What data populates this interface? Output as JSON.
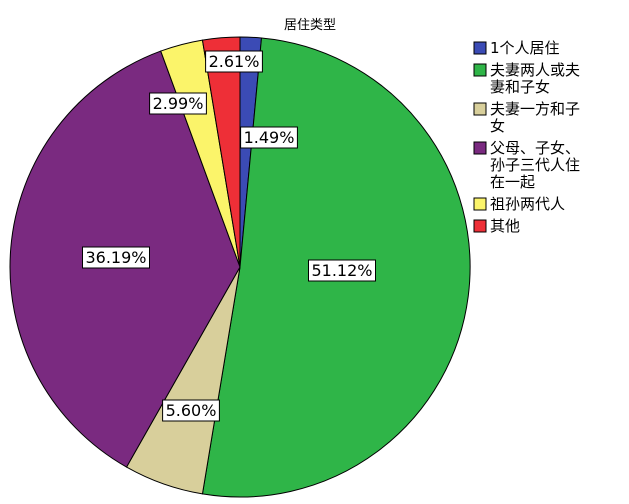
{
  "chart_data": {
    "type": "pie",
    "title": "居住类型",
    "legend_position": "right",
    "slices": [
      {
        "label": "1个人居住",
        "legend_lines": [
          "1个人居住"
        ],
        "value": 1.49,
        "label_text": "1.49%",
        "color": "#3b4bb5"
      },
      {
        "label": "夫妻两人或夫妻和子女",
        "legend_lines": [
          "夫妻两人或夫",
          "妻和子女"
        ],
        "value": 51.12,
        "label_text": "51.12%",
        "color": "#2fb548"
      },
      {
        "label": "夫妻一方和子女",
        "legend_lines": [
          "夫妻一方和子",
          "女"
        ],
        "value": 5.6,
        "label_text": "5.60%",
        "color": "#d8cf9b"
      },
      {
        "label": "父母、子女、孙子三代人住在一起",
        "legend_lines": [
          "父母、子女、",
          "孙子三代人住",
          "在一起"
        ],
        "value": 36.19,
        "label_text": "36.19%",
        "color": "#7a2a80"
      },
      {
        "label": "祖孙两代人",
        "legend_lines": [
          "祖孙两代人"
        ],
        "value": 2.99,
        "label_text": "2.99%",
        "color": "#fbf46a"
      },
      {
        "label": "其他",
        "legend_lines": [
          "其他"
        ],
        "value": 2.61,
        "label_text": "2.61%",
        "color": "#ee2f37"
      }
    ]
  }
}
